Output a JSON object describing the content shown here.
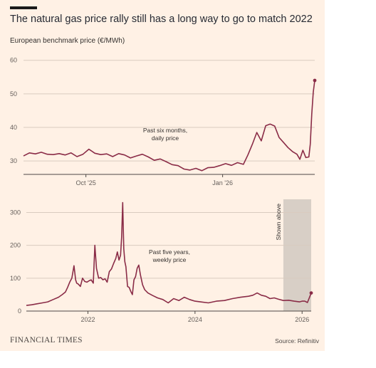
{
  "header": {
    "title": "The natural gas price rally still has a long way to go to match 2022",
    "subtitle": "European benchmark price (€/MWh)"
  },
  "footer": {
    "brand": "FINANCIAL TIMES",
    "source": "Source: Refinitiv"
  },
  "colors": {
    "background": "#fff1e5",
    "line": "#8a2c47",
    "grid": "#d9cbbf",
    "axis_text": "#66605c",
    "shaded": "#d8cfc6"
  },
  "chart_data": [
    {
      "type": "line",
      "title": "",
      "annotation": [
        "Past six months,",
        "daily price"
      ],
      "xlabel": "",
      "ylabel": "",
      "x_ticks": [
        {
          "x": "2025-10-01",
          "label": "Oct '25"
        },
        {
          "x": "2026-01-01",
          "label": "Jan '26"
        }
      ],
      "y_ticks": [
        30,
        40,
        50,
        60
      ],
      "ylim": [
        26,
        61
      ],
      "xlim": [
        "2025-08-20",
        "2026-03-04"
      ],
      "grid": true,
      "series": [
        {
          "x": [
            "2025-08-20",
            "2025-08-24",
            "2025-08-28",
            "2025-09-01",
            "2025-09-05",
            "2025-09-09",
            "2025-09-13",
            "2025-09-17",
            "2025-09-21",
            "2025-09-25",
            "2025-09-29",
            "2025-10-03",
            "2025-10-07",
            "2025-10-11",
            "2025-10-15",
            "2025-10-19",
            "2025-10-23",
            "2025-10-27",
            "2025-10-31",
            "2025-11-04",
            "2025-11-08",
            "2025-11-12",
            "2025-11-16",
            "2025-11-20",
            "2025-11-24",
            "2025-11-28",
            "2025-12-02",
            "2025-12-06",
            "2025-12-10",
            "2025-12-14",
            "2025-12-18",
            "2025-12-22",
            "2025-12-26",
            "2025-12-30",
            "2026-01-03",
            "2026-01-07",
            "2026-01-11",
            "2026-01-15",
            "2026-01-18",
            "2026-01-21",
            "2026-01-24",
            "2026-01-27",
            "2026-01-30",
            "2026-02-02",
            "2026-02-05",
            "2026-02-08",
            "2026-02-11",
            "2026-02-14",
            "2026-02-17",
            "2026-02-20",
            "2026-02-22",
            "2026-02-24",
            "2026-02-26",
            "2026-02-28",
            "2026-03-01",
            "2026-03-02",
            "2026-03-03",
            "2026-03-04"
          ],
          "values": [
            31.5,
            32.4,
            32.1,
            32.6,
            32.0,
            31.9,
            32.2,
            31.8,
            32.4,
            31.3,
            32.0,
            33.5,
            32.3,
            31.9,
            32.1,
            31.3,
            32.2,
            31.8,
            30.9,
            31.5,
            32.0,
            31.2,
            30.2,
            30.6,
            29.8,
            28.9,
            28.6,
            27.6,
            27.3,
            27.8,
            27.1,
            28.0,
            28.1,
            28.6,
            29.2,
            28.7,
            29.5,
            29.0,
            31.8,
            35.0,
            38.5,
            36.0,
            40.5,
            41.0,
            40.4,
            37.0,
            35.5,
            34.0,
            32.8,
            32.0,
            30.5,
            33.2,
            31.0,
            31.2,
            35.0,
            44.0,
            50.5,
            54.0
          ]
        }
      ]
    },
    {
      "type": "line",
      "title": "",
      "annotation": [
        "Past five years,",
        "weekly price"
      ],
      "xlabel": "",
      "ylabel": "",
      "shaded_region": {
        "x0": 2025.65,
        "x1": 2026.17,
        "label": "Shown above"
      },
      "x_ticks": [
        {
          "x": 2022,
          "label": "2022"
        },
        {
          "x": 2024,
          "label": "2024"
        },
        {
          "x": 2026,
          "label": "2026"
        }
      ],
      "y_ticks": [
        0,
        100,
        200,
        300
      ],
      "ylim": [
        0,
        340
      ],
      "xlim": [
        2020.85,
        2026.17
      ],
      "grid": true,
      "series": [
        {
          "x": [
            2020.85,
            2020.95,
            2021.05,
            2021.15,
            2021.25,
            2021.35,
            2021.45,
            2021.52,
            2021.58,
            2021.62,
            2021.66,
            2021.7,
            2021.74,
            2021.77,
            2021.79,
            2021.82,
            2021.86,
            2021.9,
            2021.94,
            2021.98,
            2022.02,
            2022.06,
            2022.1,
            2022.13,
            2022.16,
            2022.2,
            2022.24,
            2022.28,
            2022.32,
            2022.36,
            2022.4,
            2022.44,
            2022.48,
            2022.52,
            2022.55,
            2022.58,
            2022.61,
            2022.63,
            2022.65,
            2022.67,
            2022.69,
            2022.71,
            2022.74,
            2022.77,
            2022.8,
            2022.83,
            2022.86,
            2022.89,
            2022.92,
            2022.95,
            2022.98,
            2023.02,
            2023.06,
            2023.12,
            2023.2,
            2023.3,
            2023.4,
            2023.5,
            2023.6,
            2023.7,
            2023.8,
            2023.9,
            2024.0,
            2024.1,
            2024.25,
            2024.4,
            2024.55,
            2024.7,
            2024.85,
            2025.0,
            2025.08,
            2025.16,
            2025.24,
            2025.32,
            2025.4,
            2025.48,
            2025.56,
            2025.65,
            2025.75,
            2025.85,
            2025.95,
            2026.0,
            2026.05,
            2026.1,
            2026.14,
            2026.17
          ],
          "values": [
            17,
            19,
            22,
            25,
            28,
            35,
            42,
            50,
            58,
            72,
            88,
            100,
            138,
            95,
            85,
            82,
            75,
            100,
            90,
            88,
            92,
            95,
            85,
            200,
            130,
            100,
            102,
            95,
            98,
            88,
            120,
            128,
            145,
            160,
            180,
            155,
            170,
            225,
            330,
            190,
            150,
            135,
            75,
            72,
            60,
            50,
            95,
            105,
            130,
            140,
            110,
            80,
            65,
            55,
            48,
            40,
            35,
            25,
            38,
            32,
            42,
            35,
            30,
            28,
            25,
            30,
            32,
            38,
            42,
            45,
            48,
            55,
            48,
            45,
            38,
            40,
            36,
            32,
            33,
            30,
            28,
            30,
            30,
            26,
            42,
            55
          ]
        }
      ]
    }
  ]
}
